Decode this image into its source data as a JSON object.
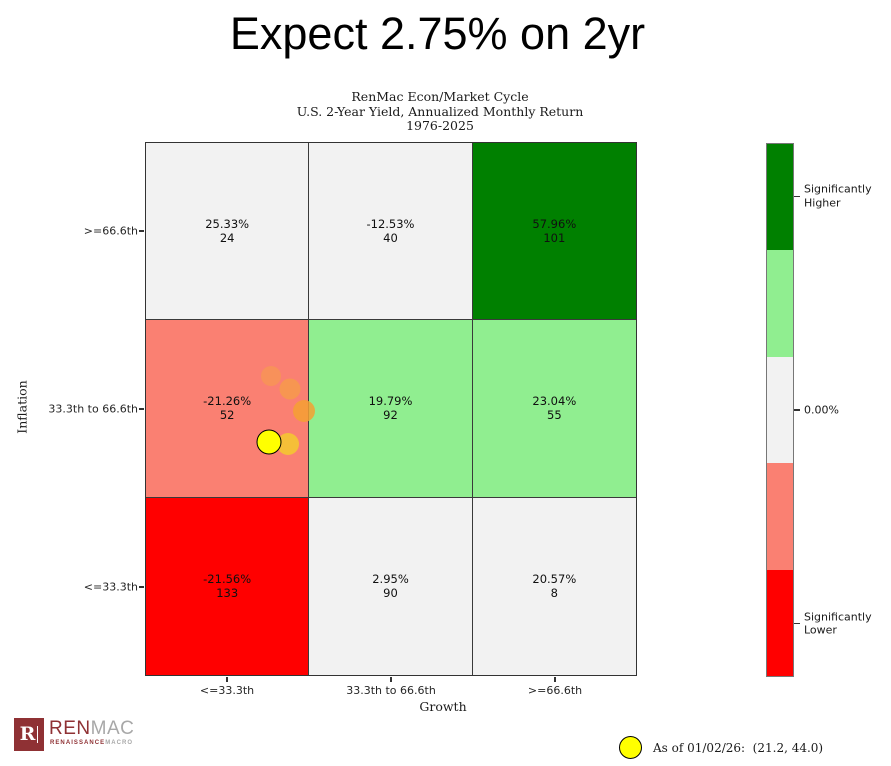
{
  "slide": {
    "title": "Expect 2.75% on 2yr"
  },
  "chart_data": {
    "type": "heatmap",
    "subtitle_lines": [
      "RenMac Econ/Market Cycle",
      "U.S. 2-Year Yield, Annualized Monthly Return",
      "1976-2025"
    ],
    "xlabel": "Growth",
    "ylabel": "Inflation",
    "x_categories": [
      "<=33.3th",
      "33.3th to 66.6th",
      ">=66.6th"
    ],
    "y_categories": [
      ">=66.6th",
      "33.3th to 66.6th",
      "<=33.3th"
    ],
    "values_return_pct": [
      [
        25.33,
        -12.53,
        57.96
      ],
      [
        -21.26,
        19.79,
        23.04
      ],
      [
        -21.56,
        2.95,
        20.57
      ]
    ],
    "counts": [
      [
        24,
        40,
        101
      ],
      [
        52,
        92,
        55
      ],
      [
        133,
        90,
        8
      ]
    ],
    "cells": [
      [
        {
          "value": "25.33%",
          "count": "24",
          "bg": "#f2f2f2"
        },
        {
          "value": "-12.53%",
          "count": "40",
          "bg": "#f2f2f2"
        },
        {
          "value": "57.96%",
          "count": "101",
          "bg": "#008000"
        }
      ],
      [
        {
          "value": "-21.26%",
          "count": "52",
          "bg": "#fa8072"
        },
        {
          "value": "19.79%",
          "count": "92",
          "bg": "#90ee90"
        },
        {
          "value": "23.04%",
          "count": "55",
          "bg": "#90ee90"
        }
      ],
      [
        {
          "value": "-21.56%",
          "count": "133",
          "bg": "#ff0000"
        },
        {
          "value": "2.95%",
          "count": "90",
          "bg": "#f2f2f2"
        },
        {
          "value": "20.57%",
          "count": "8",
          "bg": "#f2f2f2"
        }
      ]
    ],
    "colorbar": {
      "segments": [
        "#008000",
        "#90ee90",
        "#f2f2f2",
        "#fa8072",
        "#ff0000"
      ],
      "ticks": [
        {
          "lines": [
            "Significantly",
            "Higher"
          ],
          "pos_pct": 10
        },
        {
          "lines": [
            "0.00%"
          ],
          "pos_pct": 50
        },
        {
          "lines": [
            "Significantly",
            "Lower"
          ],
          "pos_pct": 90
        }
      ]
    },
    "trail": [
      {
        "x_pct": 25.6,
        "y_pct": 43.8,
        "r": 10,
        "color": "#f5a142",
        "opacity": 0.5,
        "outlined": false
      },
      {
        "x_pct": 29.3,
        "y_pct": 46.3,
        "r": 10.5,
        "color": "#f5a142",
        "opacity": 0.68,
        "outlined": false
      },
      {
        "x_pct": 32.3,
        "y_pct": 50.4,
        "r": 11,
        "color": "#f5a032",
        "opacity": 0.85,
        "outlined": false
      },
      {
        "x_pct": 28.9,
        "y_pct": 56.6,
        "r": 11,
        "color": "#f4c433",
        "opacity": 0.92,
        "outlined": false
      },
      {
        "x_pct": 25.2,
        "y_pct": 56.2,
        "r": 11.5,
        "color": "#ffff00",
        "opacity": 1,
        "outlined": true
      }
    ],
    "current_point": {
      "as_of": "01/02/26",
      "growth_percentile": 21.2,
      "inflation_percentile": 44.0
    },
    "legend": {
      "label": "As of 01/02/26:  (21.2, 44.0)",
      "marker_color": "#ffff00"
    }
  },
  "logo": {
    "monogram": "R",
    "name_primary": "REN",
    "name_secondary": "MAC",
    "subtext_primary": "RENAISSANCE",
    "subtext_secondary": "MACRO",
    "color_primary": "#8f3134",
    "color_secondary": "#a8a8a8"
  }
}
